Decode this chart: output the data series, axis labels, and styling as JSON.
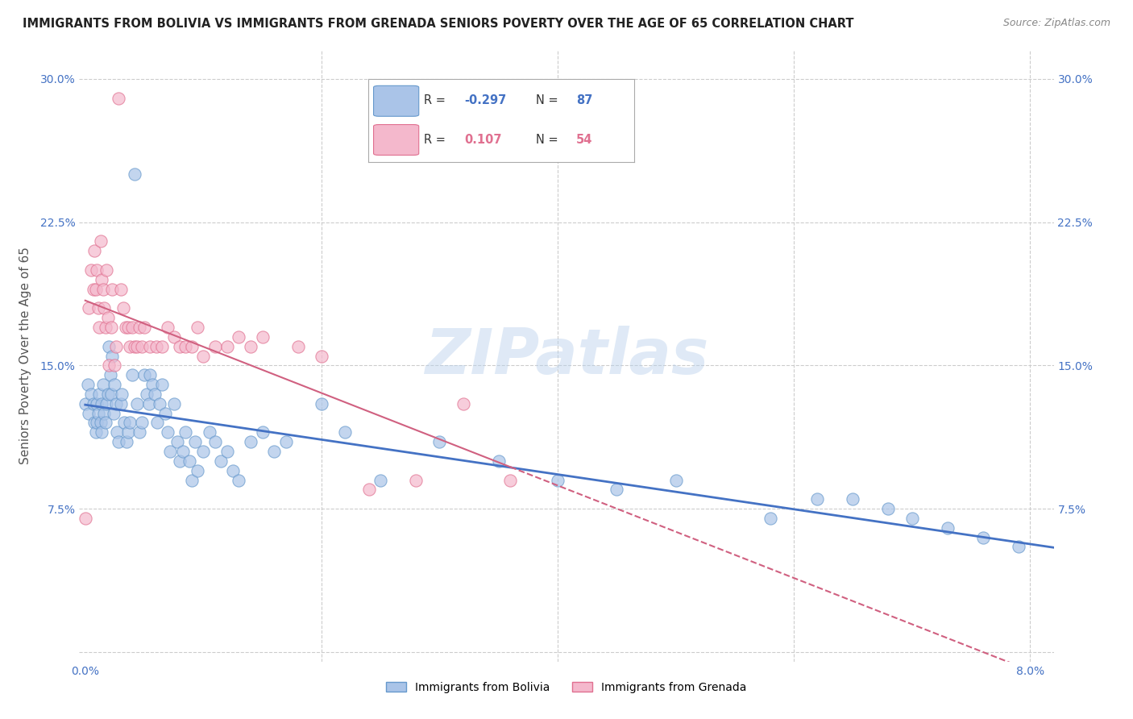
{
  "title": "IMMIGRANTS FROM BOLIVIA VS IMMIGRANTS FROM GRENADA SENIORS POVERTY OVER THE AGE OF 65 CORRELATION CHART",
  "source": "Source: ZipAtlas.com",
  "ylabel": "Seniors Poverty Over the Age of 65",
  "R_bolivia": -0.297,
  "N_bolivia": 87,
  "R_grenada": 0.107,
  "N_grenada": 54,
  "bolivia_fill": "#aac4e8",
  "bolivia_edge": "#6699cc",
  "grenada_fill": "#f4b8cc",
  "grenada_edge": "#e07090",
  "bolivia_line_color": "#4472c4",
  "grenada_line_color": "#d06080",
  "watermark": "ZIPatlas",
  "xlim": [
    0.0,
    0.082
  ],
  "ylim": [
    0.0,
    0.315
  ],
  "bolivia_x": [
    0.0,
    0.0002,
    0.0003,
    0.0005,
    0.0007,
    0.0008,
    0.0009,
    0.001,
    0.001,
    0.0011,
    0.0012,
    0.0013,
    0.0014,
    0.0014,
    0.0015,
    0.0016,
    0.0017,
    0.0018,
    0.0019,
    0.002,
    0.0021,
    0.0022,
    0.0023,
    0.0024,
    0.0025,
    0.0026,
    0.0027,
    0.0028,
    0.003,
    0.0031,
    0.0033,
    0.0035,
    0.0036,
    0.0038,
    0.004,
    0.0042,
    0.0044,
    0.0046,
    0.0048,
    0.005,
    0.0052,
    0.0054,
    0.0055,
    0.0057,
    0.0059,
    0.0061,
    0.0063,
    0.0065,
    0.0068,
    0.007,
    0.0072,
    0.0075,
    0.0078,
    0.008,
    0.0083,
    0.0085,
    0.0088,
    0.009,
    0.0093,
    0.0095,
    0.01,
    0.0105,
    0.011,
    0.0115,
    0.012,
    0.0125,
    0.013,
    0.014,
    0.015,
    0.016,
    0.017,
    0.02,
    0.022,
    0.025,
    0.03,
    0.035,
    0.04,
    0.045,
    0.05,
    0.058,
    0.062,
    0.065,
    0.068,
    0.07,
    0.073,
    0.076,
    0.079
  ],
  "bolivia_y": [
    0.13,
    0.14,
    0.125,
    0.135,
    0.13,
    0.12,
    0.115,
    0.13,
    0.12,
    0.125,
    0.135,
    0.12,
    0.115,
    0.13,
    0.14,
    0.125,
    0.12,
    0.13,
    0.135,
    0.16,
    0.145,
    0.135,
    0.155,
    0.125,
    0.14,
    0.13,
    0.115,
    0.11,
    0.13,
    0.135,
    0.12,
    0.11,
    0.115,
    0.12,
    0.145,
    0.25,
    0.13,
    0.115,
    0.12,
    0.145,
    0.135,
    0.13,
    0.145,
    0.14,
    0.135,
    0.12,
    0.13,
    0.14,
    0.125,
    0.115,
    0.105,
    0.13,
    0.11,
    0.1,
    0.105,
    0.115,
    0.1,
    0.09,
    0.11,
    0.095,
    0.105,
    0.115,
    0.11,
    0.1,
    0.105,
    0.095,
    0.09,
    0.11,
    0.115,
    0.105,
    0.11,
    0.13,
    0.115,
    0.09,
    0.11,
    0.1,
    0.09,
    0.085,
    0.09,
    0.07,
    0.08,
    0.08,
    0.075,
    0.07,
    0.065,
    0.06,
    0.055
  ],
  "grenada_x": [
    0.0,
    0.0003,
    0.0005,
    0.0007,
    0.0008,
    0.0009,
    0.001,
    0.0011,
    0.0012,
    0.0013,
    0.0014,
    0.0015,
    0.0016,
    0.0017,
    0.0018,
    0.0019,
    0.002,
    0.0022,
    0.0023,
    0.0025,
    0.0026,
    0.0028,
    0.003,
    0.0032,
    0.0034,
    0.0036,
    0.0038,
    0.004,
    0.0042,
    0.0044,
    0.0046,
    0.0048,
    0.005,
    0.0055,
    0.006,
    0.0065,
    0.007,
    0.0075,
    0.008,
    0.0085,
    0.009,
    0.0095,
    0.01,
    0.011,
    0.012,
    0.013,
    0.014,
    0.015,
    0.018,
    0.02,
    0.024,
    0.028,
    0.032,
    0.036
  ],
  "grenada_y": [
    0.07,
    0.18,
    0.2,
    0.19,
    0.21,
    0.19,
    0.2,
    0.18,
    0.17,
    0.215,
    0.195,
    0.19,
    0.18,
    0.17,
    0.2,
    0.175,
    0.15,
    0.17,
    0.19,
    0.15,
    0.16,
    0.29,
    0.19,
    0.18,
    0.17,
    0.17,
    0.16,
    0.17,
    0.16,
    0.16,
    0.17,
    0.16,
    0.17,
    0.16,
    0.16,
    0.16,
    0.17,
    0.165,
    0.16,
    0.16,
    0.16,
    0.17,
    0.155,
    0.16,
    0.16,
    0.165,
    0.16,
    0.165,
    0.16,
    0.155,
    0.085,
    0.09,
    0.13,
    0.09
  ]
}
